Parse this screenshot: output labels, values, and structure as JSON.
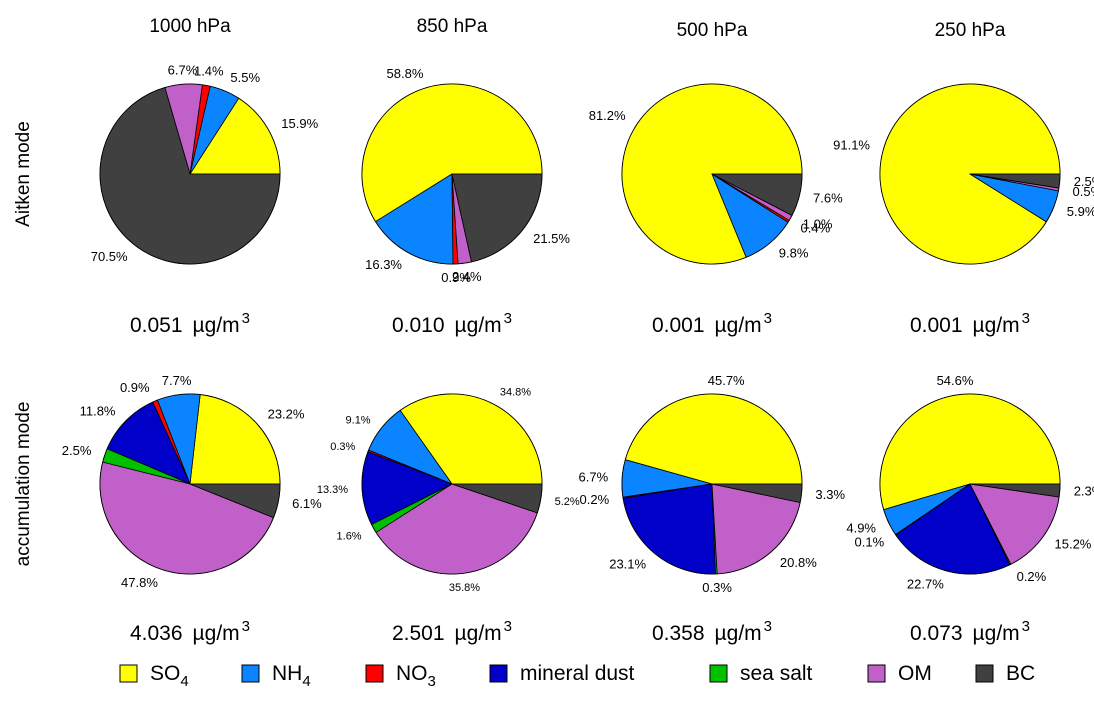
{
  "figure": {
    "row_labels": [
      "Aitken mode",
      "accumulation mode"
    ],
    "column_titles": [
      "1000 hPa",
      "850 hPa",
      "500 hPa",
      "250 hPa"
    ],
    "mass_unit_prefix": "µg/m",
    "mass_unit_sup": "3"
  },
  "legend": {
    "items": [
      {
        "key": "SO4",
        "base": "SO",
        "sub": "4",
        "color": "#ffff00"
      },
      {
        "key": "NH4",
        "base": "NH",
        "sub": "4",
        "color": "#0a84ff"
      },
      {
        "key": "NO3",
        "base": "NO",
        "sub": "3",
        "color": "#ff0000"
      },
      {
        "key": "dust",
        "base": "mineral dust",
        "sub": "",
        "color": "#0000c8"
      },
      {
        "key": "salt",
        "base": "sea salt",
        "sub": "",
        "color": "#00c000"
      },
      {
        "key": "OM",
        "base": "OM",
        "sub": "",
        "color": "#c060c8"
      },
      {
        "key": "BC",
        "base": "BC",
        "sub": "",
        "color": "#404040"
      }
    ]
  },
  "chart_data": [
    {
      "type": "pie",
      "mode": "Aitken mode",
      "level": "1000 hPa",
      "total": "0.051",
      "slices": [
        {
          "key": "SO4",
          "value": 15.9,
          "label": "15.9%"
        },
        {
          "key": "NH4",
          "value": 5.5,
          "label": "5.5%"
        },
        {
          "key": "NO3",
          "value": 1.4,
          "label": "1.4%"
        },
        {
          "key": "OM",
          "value": 6.7,
          "label": "6.7%"
        },
        {
          "key": "BC",
          "value": 70.5,
          "label": "70.5%"
        }
      ]
    },
    {
      "type": "pie",
      "mode": "Aitken mode",
      "level": "850 hPa",
      "total": "0.010",
      "slices": [
        {
          "key": "SO4",
          "value": 58.8,
          "label": "58.8%"
        },
        {
          "key": "NH4",
          "value": 16.3,
          "label": "16.3%"
        },
        {
          "key": "NO3",
          "value": 0.9,
          "label": "0.9%"
        },
        {
          "key": "OM",
          "value": 2.4,
          "label": "2.4%"
        },
        {
          "key": "BC",
          "value": 21.5,
          "label": "21.5%"
        }
      ]
    },
    {
      "type": "pie",
      "mode": "Aitken mode",
      "level": "500 hPa",
      "total": "0.001",
      "slices": [
        {
          "key": "SO4",
          "value": 81.2,
          "label": "81.2%"
        },
        {
          "key": "NH4",
          "value": 9.8,
          "label": "9.8%"
        },
        {
          "key": "NO3",
          "value": 0.4,
          "label": "0.4%"
        },
        {
          "key": "OM",
          "value": 1.0,
          "label": "1.0%"
        },
        {
          "key": "BC",
          "value": 7.6,
          "label": "7.6%"
        }
      ]
    },
    {
      "type": "pie",
      "mode": "Aitken mode",
      "level": "250 hPa",
      "total": "0.001",
      "slices": [
        {
          "key": "SO4",
          "value": 91.1,
          "label": "91.1%"
        },
        {
          "key": "NH4",
          "value": 5.9,
          "label": "5.9%"
        },
        {
          "key": "OM",
          "value": 0.5,
          "label": "0.5%"
        },
        {
          "key": "BC",
          "value": 2.5,
          "label": "2.5%"
        }
      ]
    },
    {
      "type": "pie",
      "mode": "accumulation mode",
      "level": "1000 hPa",
      "total": "4.036",
      "slices": [
        {
          "key": "SO4",
          "value": 23.2,
          "label": "23.2%"
        },
        {
          "key": "NH4",
          "value": 7.7,
          "label": "7.7%"
        },
        {
          "key": "NO3",
          "value": 0.9,
          "label": "0.9%"
        },
        {
          "key": "dust",
          "value": 11.8,
          "label": "11.8%"
        },
        {
          "key": "salt",
          "value": 2.5,
          "label": "2.5%"
        },
        {
          "key": "OM",
          "value": 47.8,
          "label": "47.8%"
        },
        {
          "key": "BC",
          "value": 6.1,
          "label": "6.1%"
        }
      ]
    },
    {
      "type": "pie",
      "mode": "accumulation mode",
      "level": "850 hPa",
      "total": "2.501",
      "slices": [
        {
          "key": "SO4",
          "value": 34.8,
          "label": "34.8%"
        },
        {
          "key": "NH4",
          "value": 9.1,
          "label": "9.1%"
        },
        {
          "key": "NO3",
          "value": 0.3,
          "label": "0.3%"
        },
        {
          "key": "dust",
          "value": 13.3,
          "label": "13.3%"
        },
        {
          "key": "salt",
          "value": 1.6,
          "label": "1.6%"
        },
        {
          "key": "OM",
          "value": 35.8,
          "label": "35.8%"
        },
        {
          "key": "BC",
          "value": 5.2,
          "label": "5.2%"
        }
      ]
    },
    {
      "type": "pie",
      "mode": "accumulation mode",
      "level": "500 hPa",
      "total": "0.358",
      "slices": [
        {
          "key": "SO4",
          "value": 45.7,
          "label": "45.7%"
        },
        {
          "key": "NH4",
          "value": 6.7,
          "label": "6.7%"
        },
        {
          "key": "NO3",
          "value": 0.2,
          "label": "0.2%"
        },
        {
          "key": "dust",
          "value": 23.1,
          "label": "23.1%"
        },
        {
          "key": "salt",
          "value": 0.3,
          "label": "0.3%"
        },
        {
          "key": "OM",
          "value": 20.8,
          "label": "20.8%"
        },
        {
          "key": "BC",
          "value": 3.3,
          "label": "3.3%"
        }
      ]
    },
    {
      "type": "pie",
      "mode": "accumulation mode",
      "level": "250 hPa",
      "total": "0.073",
      "slices": [
        {
          "key": "SO4",
          "value": 54.6,
          "label": "54.6%"
        },
        {
          "key": "NH4",
          "value": 4.9,
          "label": "4.9%"
        },
        {
          "key": "NO3",
          "value": 0.1,
          "label": "0.1%"
        },
        {
          "key": "dust",
          "value": 22.7,
          "label": "22.7%"
        },
        {
          "key": "salt",
          "value": 0.2,
          "label": "0.2%"
        },
        {
          "key": "OM",
          "value": 15.2,
          "label": "15.2%"
        },
        {
          "key": "BC",
          "value": 2.3,
          "label": "2.3%"
        }
      ]
    }
  ]
}
